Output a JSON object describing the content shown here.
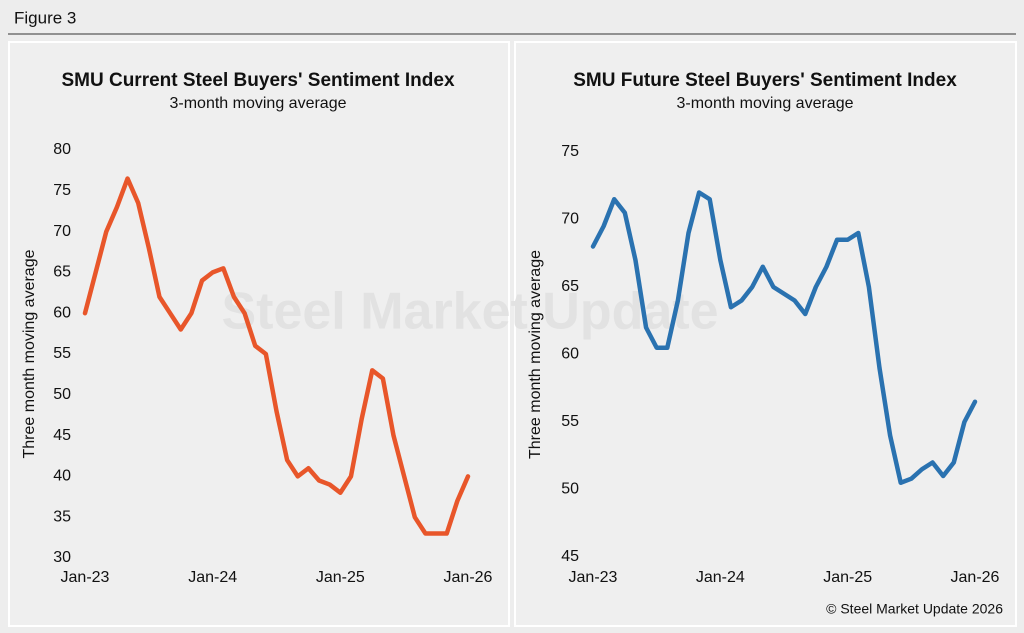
{
  "figure_label": "Figure 3",
  "source": "© Steel Market Update 2026",
  "watermark": "Steel Market Update",
  "chart_data": [
    {
      "type": "line",
      "title": "SMU Current Steel Buyers' Sentiment Index",
      "subtitle": "3-month moving average",
      "y_label": "Three month moving average",
      "x": [
        "Jan-23",
        "Feb-23",
        "Mar-23",
        "Apr-23",
        "May-23",
        "Jun-23",
        "Jul-23",
        "Aug-23",
        "Sep-23",
        "Oct-23",
        "Nov-23",
        "Dec-23",
        "Jan-24",
        "Feb-24",
        "Mar-24",
        "Apr-24",
        "May-24",
        "Jun-24",
        "Jul-24",
        "Aug-24",
        "Sep-24",
        "Oct-24",
        "Nov-24",
        "Dec-24",
        "Jan-25",
        "Feb-25",
        "Mar-25",
        "Apr-25",
        "May-25",
        "Jun-25",
        "Jul-25",
        "Aug-25",
        "Sep-25",
        "Oct-25",
        "Nov-25",
        "Dec-25",
        "Jan-26"
      ],
      "series": [
        {
          "name": "Current",
          "color": "#e8562a",
          "values": [
            60,
            65,
            70,
            73,
            76.5,
            73.5,
            68,
            62,
            60,
            58,
            60,
            64,
            65,
            65.5,
            62,
            60,
            56,
            55,
            48,
            42,
            40,
            41,
            39.5,
            39,
            38,
            40,
            47,
            53,
            52,
            45,
            40,
            35,
            33,
            33,
            33,
            37,
            40
          ]
        }
      ],
      "xticks": [
        "Jan-23",
        "Jan-24",
        "Jan-25",
        "Jan-26"
      ],
      "ylim": [
        30,
        80
      ],
      "yticks": [
        30,
        35,
        40,
        45,
        50,
        55,
        60,
        65,
        70,
        75,
        80
      ],
      "grid": false
    },
    {
      "type": "line",
      "title": "SMU Future Steel Buyers' Sentiment Index",
      "subtitle": "3-month moving average",
      "y_label": "Three month moving average",
      "x": [
        "Jan-23",
        "Feb-23",
        "Mar-23",
        "Apr-23",
        "May-23",
        "Jun-23",
        "Jul-23",
        "Aug-23",
        "Sep-23",
        "Oct-23",
        "Nov-23",
        "Dec-23",
        "Jan-24",
        "Feb-24",
        "Mar-24",
        "Apr-24",
        "May-24",
        "Jun-24",
        "Jul-24",
        "Aug-24",
        "Sep-24",
        "Oct-24",
        "Nov-24",
        "Dec-24",
        "Jan-25",
        "Feb-25",
        "Mar-25",
        "Apr-25",
        "May-25",
        "Jun-25",
        "Jul-25",
        "Aug-25",
        "Sep-25",
        "Oct-25",
        "Nov-25",
        "Dec-25",
        "Jan-26"
      ],
      "series": [
        {
          "name": "Future",
          "color": "#2a72b0",
          "values": [
            68,
            69.5,
            71.5,
            70.5,
            67,
            62,
            60.5,
            60.5,
            64,
            69,
            72,
            71.5,
            67,
            63.5,
            64,
            65,
            66.5,
            65,
            64.5,
            64,
            63,
            65,
            66.5,
            68.5,
            68.5,
            69,
            65,
            59,
            54,
            50.5,
            50.8,
            51.5,
            52,
            51,
            52,
            55,
            56.5
          ]
        }
      ],
      "xticks": [
        "Jan-23",
        "Jan-24",
        "Jan-25",
        "Jan-26"
      ],
      "ylim": [
        45,
        75
      ],
      "yticks": [
        45,
        50,
        55,
        60,
        65,
        70,
        75
      ],
      "grid": false
    }
  ]
}
